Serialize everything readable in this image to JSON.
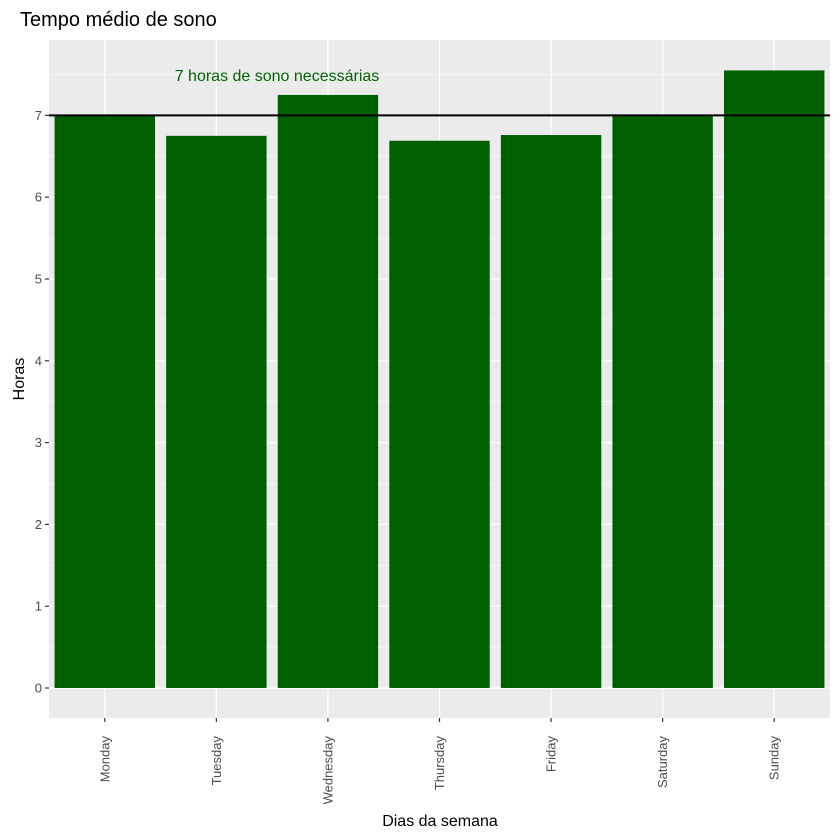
{
  "chart_data": {
    "type": "bar",
    "title": "Tempo médio de sono",
    "xlabel": "Dias da semana",
    "ylabel": "Horas",
    "categories": [
      "Monday",
      "Tuesday",
      "Wednesday",
      "Thursday",
      "Friday",
      "Saturday",
      "Sunday"
    ],
    "values": [
      7.0,
      6.75,
      7.25,
      6.69,
      6.76,
      6.99,
      7.55
    ],
    "ylim": [
      0,
      7.55
    ],
    "yticks": [
      "0",
      "1",
      "2",
      "3",
      "4",
      "5",
      "6",
      "7"
    ],
    "grid": true,
    "bar_color": "#006000",
    "panel_background": "#ebebeb",
    "reference_line": {
      "value": 7,
      "color": "#000000",
      "label": "7 horas de sono necessárias",
      "label_color": "#006400"
    }
  }
}
